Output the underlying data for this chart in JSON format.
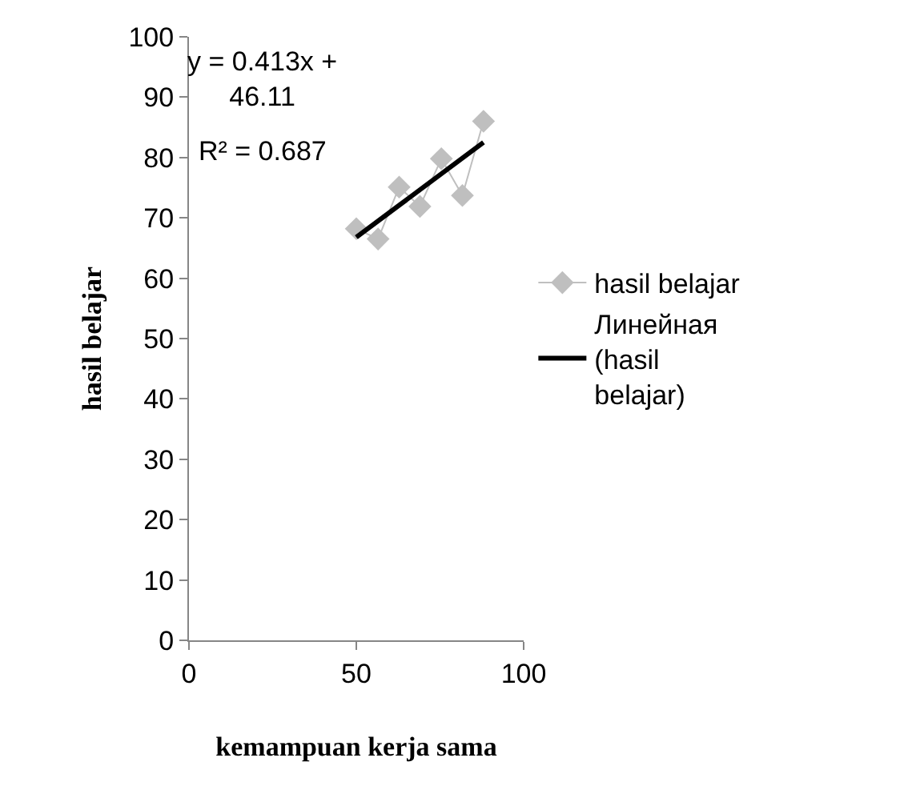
{
  "chart_data": {
    "type": "line",
    "xlabel": "kemampuan kerja sama",
    "ylabel": "hasil belajar",
    "xlim": [
      0,
      100
    ],
    "xticks": [
      0,
      50,
      100
    ],
    "ylim": [
      0,
      100
    ],
    "yticks": [
      0,
      10,
      20,
      30,
      40,
      50,
      60,
      70,
      80,
      90,
      100
    ],
    "grid": false,
    "legend": "right",
    "marker": "diamond",
    "annotations": [
      "y = 0.413x + 46.11",
      "R² = 0.687"
    ],
    "series": [
      {
        "name": "hasil belajar",
        "color": "#bfbfbf",
        "x": [
          50,
          56.5,
          62.8,
          69,
          75.4,
          81.7,
          88
        ],
        "values": [
          68.2,
          66.5,
          75.1,
          71.9,
          79.8,
          73.7,
          86
        ]
      },
      {
        "name": "Линейная (hasil belajar)",
        "color": "#000000",
        "marker": "none",
        "x": [
          50,
          88
        ],
        "values": [
          66.8,
          82.5
        ]
      }
    ]
  }
}
